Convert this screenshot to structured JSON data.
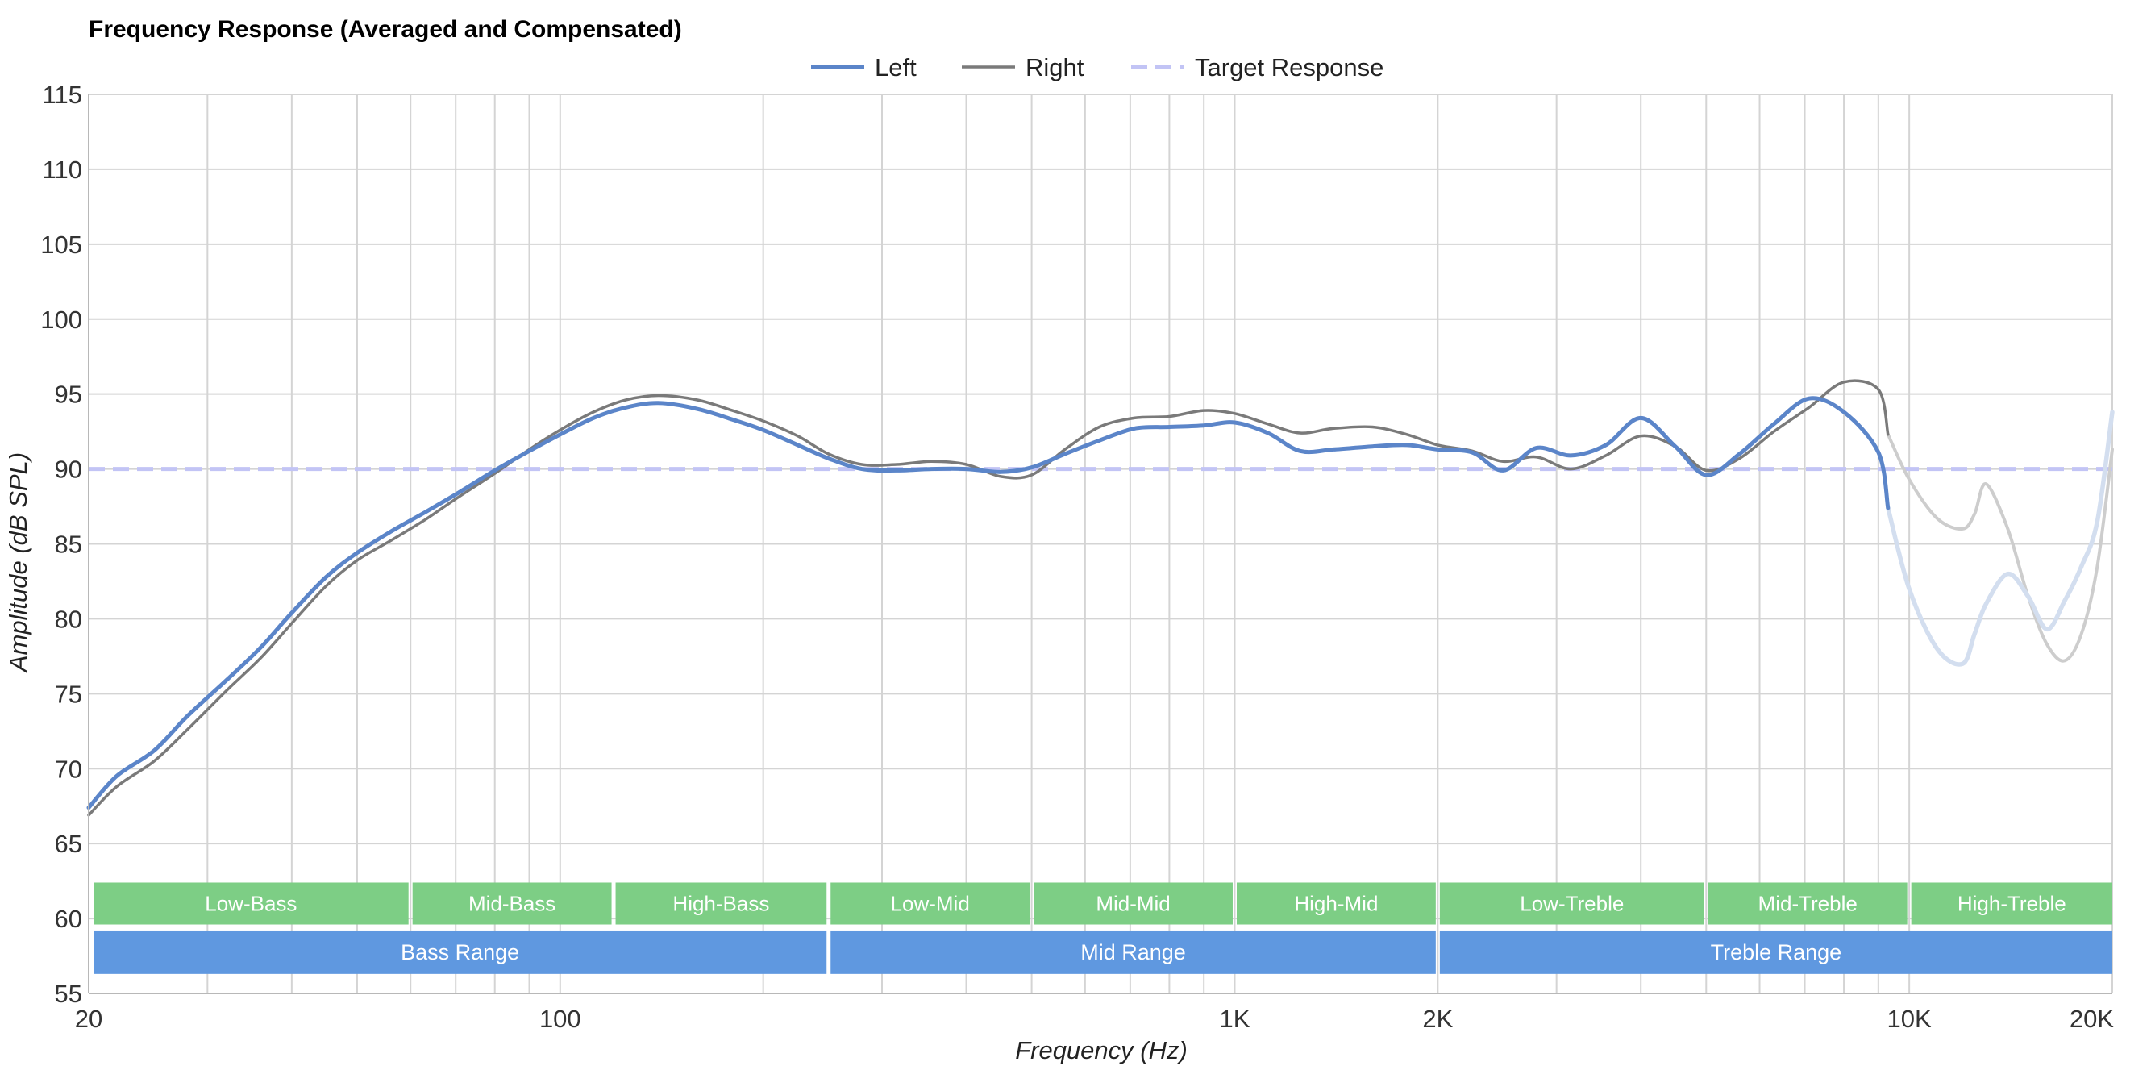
{
  "chart_data": {
    "type": "line",
    "title": "Frequency Response (Averaged and Compensated)",
    "xlabel": "Frequency (Hz)",
    "ylabel": "Amplitude (dB SPL)",
    "xscale": "log",
    "xlim": [
      20,
      20000
    ],
    "ylim": [
      55,
      115
    ],
    "grid": true,
    "legend_position": "top-center",
    "x_tick_labels": [
      {
        "value": 20,
        "label": "20"
      },
      {
        "value": 100,
        "label": "100"
      },
      {
        "value": 1000,
        "label": "1K"
      },
      {
        "value": 2000,
        "label": "2K"
      },
      {
        "value": 10000,
        "label": "10K"
      },
      {
        "value": 20000,
        "label": "20K"
      }
    ],
    "y_ticks": [
      55,
      60,
      65,
      70,
      75,
      80,
      85,
      90,
      95,
      100,
      105,
      110,
      115
    ],
    "series": [
      {
        "name": "Left",
        "color": "#5b85c9",
        "faded_color": "#d3deef",
        "faded_from": 9300,
        "style": "solid",
        "x": [
          20,
          22,
          25,
          28,
          32,
          36,
          40,
          45,
          50,
          56,
          63,
          70,
          80,
          90,
          100,
          112,
          125,
          140,
          160,
          180,
          200,
          225,
          250,
          280,
          315,
          355,
          400,
          450,
          500,
          560,
          630,
          710,
          800,
          900,
          1000,
          1120,
          1250,
          1400,
          1600,
          1800,
          2000,
          2250,
          2500,
          2800,
          3150,
          3550,
          4000,
          4500,
          5000,
          5600,
          6300,
          7100,
          8000,
          9000,
          9300,
          10000,
          11000,
          12000,
          12500,
          13000,
          14000,
          15000,
          16000,
          17000,
          18000,
          19000,
          20000
        ],
        "y": [
          67.4,
          69.5,
          71.2,
          73.5,
          75.9,
          78.1,
          80.4,
          82.8,
          84.4,
          85.8,
          87.1,
          88.3,
          89.9,
          91.2,
          92.3,
          93.4,
          94.1,
          94.4,
          94.0,
          93.3,
          92.6,
          91.6,
          90.7,
          90.0,
          89.9,
          90.0,
          90.0,
          89.8,
          90.1,
          91.0,
          91.9,
          92.7,
          92.8,
          92.9,
          93.1,
          92.4,
          91.2,
          91.3,
          91.5,
          91.6,
          91.3,
          91.1,
          89.9,
          91.4,
          90.9,
          91.6,
          93.4,
          91.5,
          89.6,
          91.0,
          93.0,
          94.7,
          93.8,
          91.1,
          87.4,
          82.0,
          78.0,
          77.0,
          79.0,
          81.0,
          83.0,
          81.5,
          79.3,
          81.2,
          83.5,
          86.5,
          93.8
        ]
      },
      {
        "name": "Right",
        "color": "#7a7a7a",
        "faded_color": "#cdcdcd",
        "faded_from": 9300,
        "style": "solid",
        "x": [
          20,
          22,
          25,
          28,
          32,
          36,
          40,
          45,
          50,
          56,
          63,
          70,
          80,
          90,
          100,
          112,
          125,
          140,
          160,
          180,
          200,
          225,
          250,
          280,
          315,
          355,
          400,
          450,
          500,
          560,
          630,
          710,
          800,
          900,
          1000,
          1120,
          1250,
          1400,
          1600,
          1800,
          2000,
          2250,
          2500,
          2800,
          3150,
          3550,
          4000,
          4500,
          5000,
          5600,
          6300,
          7100,
          8000,
          9000,
          9300,
          10000,
          11000,
          12000,
          12500,
          13000,
          14000,
          15000,
          16000,
          17000,
          18000,
          19000,
          20000
        ],
        "y": [
          66.9,
          68.8,
          70.5,
          72.6,
          75.2,
          77.4,
          79.7,
          82.2,
          83.9,
          85.2,
          86.6,
          88.0,
          89.7,
          91.3,
          92.6,
          93.8,
          94.6,
          94.9,
          94.6,
          93.9,
          93.2,
          92.2,
          91.0,
          90.3,
          90.3,
          90.5,
          90.3,
          89.5,
          89.6,
          91.3,
          92.8,
          93.4,
          93.5,
          93.9,
          93.7,
          93.0,
          92.4,
          92.7,
          92.8,
          92.3,
          91.6,
          91.2,
          90.5,
          90.8,
          90.0,
          90.9,
          92.2,
          91.5,
          89.9,
          90.7,
          92.5,
          94.1,
          95.8,
          95.3,
          92.3,
          89.3,
          86.7,
          86.0,
          87.0,
          89.0,
          86.0,
          81.5,
          78.3,
          77.2,
          79.0,
          83.5,
          91.3
        ]
      },
      {
        "name": "Target Response",
        "color": "#c2c4f5",
        "style": "dashed",
        "x": [
          20,
          20000
        ],
        "y": [
          90,
          90
        ]
      }
    ],
    "bands": [
      {
        "label": "Low-Bass",
        "from": 20,
        "to": 60
      },
      {
        "label": "Mid-Bass",
        "from": 60,
        "to": 120
      },
      {
        "label": "High-Bass",
        "from": 120,
        "to": 250
      },
      {
        "label": "Low-Mid",
        "from": 250,
        "to": 500
      },
      {
        "label": "Mid-Mid",
        "from": 500,
        "to": 1000
      },
      {
        "label": "High-Mid",
        "from": 1000,
        "to": 2000
      },
      {
        "label": "Low-Treble",
        "from": 2000,
        "to": 5000
      },
      {
        "label": "Mid-Treble",
        "from": 5000,
        "to": 10000
      },
      {
        "label": "High-Treble",
        "from": 10000,
        "to": 20000
      }
    ],
    "ranges": [
      {
        "label": "Bass Range",
        "from": 20,
        "to": 250
      },
      {
        "label": "Mid Range",
        "from": 250,
        "to": 2000
      },
      {
        "label": "Treble Range",
        "from": 2000,
        "to": 20000
      }
    ],
    "band_color": "#7dce85",
    "range_color": "#5f98e0",
    "grid_color": "#d4d4d4"
  }
}
